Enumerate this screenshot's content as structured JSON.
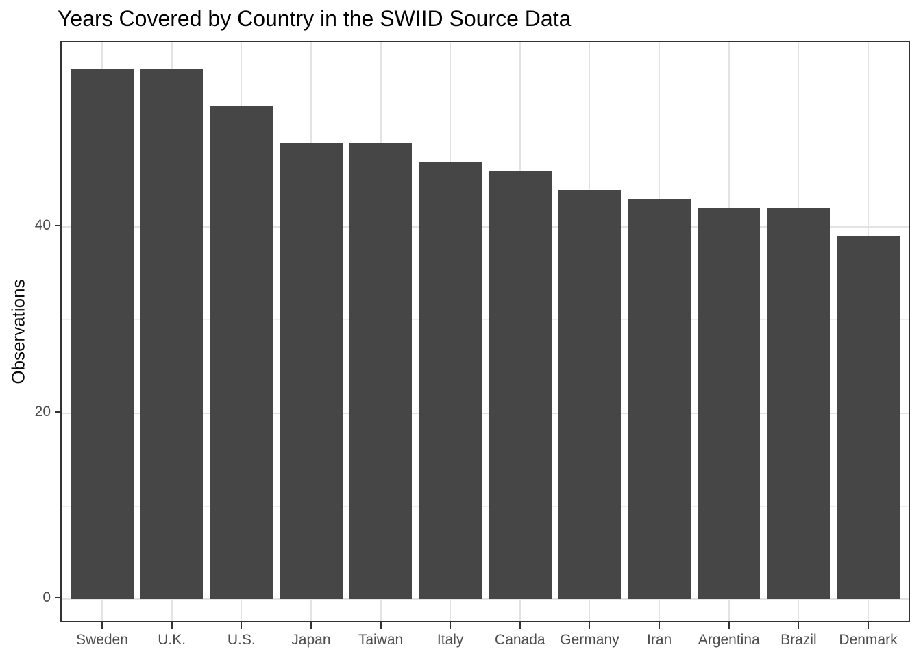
{
  "chart_data": {
    "type": "bar",
    "title": "Years Covered by Country in the SWIID Source Data",
    "ylabel": "Observations",
    "xlabel": "",
    "categories": [
      "Sweden",
      "U.K.",
      "U.S.",
      "Japan",
      "Taiwan",
      "Italy",
      "Canada",
      "Germany",
      "Iran",
      "Argentina",
      "Brazil",
      "Denmark"
    ],
    "values": [
      57,
      57,
      53,
      49,
      49,
      47,
      46,
      44,
      43,
      42,
      42,
      39
    ],
    "y_ticks": [
      0,
      20,
      40
    ],
    "y_minor_ticks": [
      10,
      30,
      50
    ],
    "ylim": [
      0,
      60
    ],
    "grid": true,
    "legend": "none",
    "layout_hints": {
      "bar_orientation": "vertical",
      "major_vertical_gridlines": "at category centers",
      "panel_border": true,
      "ticks_outside": true
    },
    "colors": {
      "bar": "#464646",
      "grid_major": "#E3E3E3",
      "grid_minor": "#EFEFEF",
      "panel_border": "#333333",
      "tick_mark": "#333333",
      "axis_text": "#4D4D4D",
      "title_text": "#000000",
      "background": "#FFFFFF"
    }
  }
}
